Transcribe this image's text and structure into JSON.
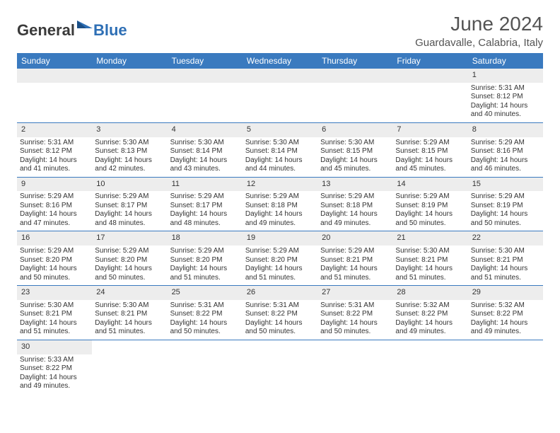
{
  "brand": {
    "text1": "General",
    "text2": "Blue"
  },
  "header": {
    "title": "June 2024",
    "subtitle": "Guardavalle, Calabria, Italy"
  },
  "colors": {
    "accent": "#3a7abf",
    "header_text": "#545454",
    "day_bg": "#ededed",
    "body_text": "#333333",
    "white": "#ffffff"
  },
  "days_of_week": [
    "Sunday",
    "Monday",
    "Tuesday",
    "Wednesday",
    "Thursday",
    "Friday",
    "Saturday"
  ],
  "weeks": [
    [
      null,
      null,
      null,
      null,
      null,
      null,
      {
        "n": "1",
        "l1": "Sunrise: 5:31 AM",
        "l2": "Sunset: 8:12 PM",
        "l3": "Daylight: 14 hours",
        "l4": "and 40 minutes."
      }
    ],
    [
      {
        "n": "2",
        "l1": "Sunrise: 5:31 AM",
        "l2": "Sunset: 8:12 PM",
        "l3": "Daylight: 14 hours",
        "l4": "and 41 minutes."
      },
      {
        "n": "3",
        "l1": "Sunrise: 5:30 AM",
        "l2": "Sunset: 8:13 PM",
        "l3": "Daylight: 14 hours",
        "l4": "and 42 minutes."
      },
      {
        "n": "4",
        "l1": "Sunrise: 5:30 AM",
        "l2": "Sunset: 8:14 PM",
        "l3": "Daylight: 14 hours",
        "l4": "and 43 minutes."
      },
      {
        "n": "5",
        "l1": "Sunrise: 5:30 AM",
        "l2": "Sunset: 8:14 PM",
        "l3": "Daylight: 14 hours",
        "l4": "and 44 minutes."
      },
      {
        "n": "6",
        "l1": "Sunrise: 5:30 AM",
        "l2": "Sunset: 8:15 PM",
        "l3": "Daylight: 14 hours",
        "l4": "and 45 minutes."
      },
      {
        "n": "7",
        "l1": "Sunrise: 5:29 AM",
        "l2": "Sunset: 8:15 PM",
        "l3": "Daylight: 14 hours",
        "l4": "and 45 minutes."
      },
      {
        "n": "8",
        "l1": "Sunrise: 5:29 AM",
        "l2": "Sunset: 8:16 PM",
        "l3": "Daylight: 14 hours",
        "l4": "and 46 minutes."
      }
    ],
    [
      {
        "n": "9",
        "l1": "Sunrise: 5:29 AM",
        "l2": "Sunset: 8:16 PM",
        "l3": "Daylight: 14 hours",
        "l4": "and 47 minutes."
      },
      {
        "n": "10",
        "l1": "Sunrise: 5:29 AM",
        "l2": "Sunset: 8:17 PM",
        "l3": "Daylight: 14 hours",
        "l4": "and 48 minutes."
      },
      {
        "n": "11",
        "l1": "Sunrise: 5:29 AM",
        "l2": "Sunset: 8:17 PM",
        "l3": "Daylight: 14 hours",
        "l4": "and 48 minutes."
      },
      {
        "n": "12",
        "l1": "Sunrise: 5:29 AM",
        "l2": "Sunset: 8:18 PM",
        "l3": "Daylight: 14 hours",
        "l4": "and 49 minutes."
      },
      {
        "n": "13",
        "l1": "Sunrise: 5:29 AM",
        "l2": "Sunset: 8:18 PM",
        "l3": "Daylight: 14 hours",
        "l4": "and 49 minutes."
      },
      {
        "n": "14",
        "l1": "Sunrise: 5:29 AM",
        "l2": "Sunset: 8:19 PM",
        "l3": "Daylight: 14 hours",
        "l4": "and 50 minutes."
      },
      {
        "n": "15",
        "l1": "Sunrise: 5:29 AM",
        "l2": "Sunset: 8:19 PM",
        "l3": "Daylight: 14 hours",
        "l4": "and 50 minutes."
      }
    ],
    [
      {
        "n": "16",
        "l1": "Sunrise: 5:29 AM",
        "l2": "Sunset: 8:20 PM",
        "l3": "Daylight: 14 hours",
        "l4": "and 50 minutes."
      },
      {
        "n": "17",
        "l1": "Sunrise: 5:29 AM",
        "l2": "Sunset: 8:20 PM",
        "l3": "Daylight: 14 hours",
        "l4": "and 50 minutes."
      },
      {
        "n": "18",
        "l1": "Sunrise: 5:29 AM",
        "l2": "Sunset: 8:20 PM",
        "l3": "Daylight: 14 hours",
        "l4": "and 51 minutes."
      },
      {
        "n": "19",
        "l1": "Sunrise: 5:29 AM",
        "l2": "Sunset: 8:20 PM",
        "l3": "Daylight: 14 hours",
        "l4": "and 51 minutes."
      },
      {
        "n": "20",
        "l1": "Sunrise: 5:29 AM",
        "l2": "Sunset: 8:21 PM",
        "l3": "Daylight: 14 hours",
        "l4": "and 51 minutes."
      },
      {
        "n": "21",
        "l1": "Sunrise: 5:30 AM",
        "l2": "Sunset: 8:21 PM",
        "l3": "Daylight: 14 hours",
        "l4": "and 51 minutes."
      },
      {
        "n": "22",
        "l1": "Sunrise: 5:30 AM",
        "l2": "Sunset: 8:21 PM",
        "l3": "Daylight: 14 hours",
        "l4": "and 51 minutes."
      }
    ],
    [
      {
        "n": "23",
        "l1": "Sunrise: 5:30 AM",
        "l2": "Sunset: 8:21 PM",
        "l3": "Daylight: 14 hours",
        "l4": "and 51 minutes."
      },
      {
        "n": "24",
        "l1": "Sunrise: 5:30 AM",
        "l2": "Sunset: 8:21 PM",
        "l3": "Daylight: 14 hours",
        "l4": "and 51 minutes."
      },
      {
        "n": "25",
        "l1": "Sunrise: 5:31 AM",
        "l2": "Sunset: 8:22 PM",
        "l3": "Daylight: 14 hours",
        "l4": "and 50 minutes."
      },
      {
        "n": "26",
        "l1": "Sunrise: 5:31 AM",
        "l2": "Sunset: 8:22 PM",
        "l3": "Daylight: 14 hours",
        "l4": "and 50 minutes."
      },
      {
        "n": "27",
        "l1": "Sunrise: 5:31 AM",
        "l2": "Sunset: 8:22 PM",
        "l3": "Daylight: 14 hours",
        "l4": "and 50 minutes."
      },
      {
        "n": "28",
        "l1": "Sunrise: 5:32 AM",
        "l2": "Sunset: 8:22 PM",
        "l3": "Daylight: 14 hours",
        "l4": "and 49 minutes."
      },
      {
        "n": "29",
        "l1": "Sunrise: 5:32 AM",
        "l2": "Sunset: 8:22 PM",
        "l3": "Daylight: 14 hours",
        "l4": "and 49 minutes."
      }
    ],
    [
      {
        "n": "30",
        "l1": "Sunrise: 5:33 AM",
        "l2": "Sunset: 8:22 PM",
        "l3": "Daylight: 14 hours",
        "l4": "and 49 minutes."
      },
      null,
      null,
      null,
      null,
      null,
      null
    ]
  ]
}
